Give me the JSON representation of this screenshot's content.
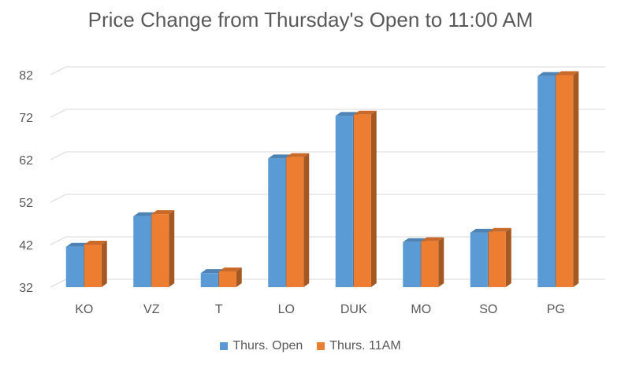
{
  "chart_data": {
    "type": "bar",
    "title": "Price Change from Thursday's Open to 11:00 AM",
    "categories": [
      "KO",
      "VZ",
      "T",
      "LO",
      "DUK",
      "MO",
      "SO",
      "PG"
    ],
    "series": [
      {
        "name": "Thurs. Open",
        "values": [
          41.5,
          48.7,
          35.3,
          62.3,
          72.3,
          42.6,
          44.8,
          81.7
        ],
        "color": "#5B9BD5"
      },
      {
        "name": "Thurs. 11AM",
        "values": [
          42.0,
          49.2,
          35.7,
          62.6,
          72.6,
          42.8,
          45.0,
          81.9
        ],
        "color": "#ED7D31"
      }
    ],
    "yticks": [
      32,
      42,
      52,
      62,
      72,
      82
    ],
    "ylim": [
      32,
      84
    ],
    "grid": true,
    "legend": "bottom",
    "style": "3d-clustered-column"
  }
}
